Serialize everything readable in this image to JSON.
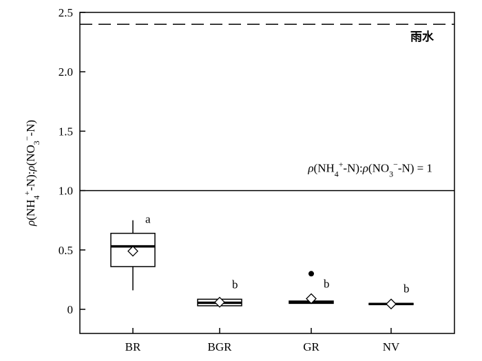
{
  "chart_data": {
    "type": "box",
    "title": "",
    "xlabel": "",
    "ylabel": {
      "parts": [
        {
          "t": "ρ",
          "style": "italic"
        },
        {
          "t": "(NH"
        },
        {
          "t": "4",
          "style": "sub"
        },
        {
          "t": "+",
          "style": "sup"
        },
        {
          "t": "-N):"
        },
        {
          "t": "ρ",
          "style": "italic"
        },
        {
          "t": "(NO"
        },
        {
          "t": "3",
          "style": "sub"
        },
        {
          "t": "−",
          "style": "sup"
        },
        {
          "t": "-N)"
        }
      ]
    },
    "ylim": [
      -0.2,
      2.5
    ],
    "yticks": [
      0,
      0.5,
      1.0,
      1.5,
      2.0,
      2.5
    ],
    "ytick_labels": [
      "0",
      "0.5",
      "1.0",
      "1.5",
      "2.0",
      "2.5"
    ],
    "categories": [
      "BR",
      "BGR",
      "GR",
      "NV"
    ],
    "boxes": [
      {
        "category": "BR",
        "whisker_low": 0.16,
        "q1": 0.36,
        "median": 0.53,
        "q3": 0.64,
        "whisker_high": 0.75,
        "mean": 0.49,
        "outliers": [],
        "letter": "a"
      },
      {
        "category": "BGR",
        "whisker_low": 0.03,
        "q1": 0.03,
        "median": 0.055,
        "q3": 0.085,
        "whisker_high": 0.085,
        "mean": 0.06,
        "outliers": [],
        "letter": "b"
      },
      {
        "category": "GR",
        "whisker_low": 0.05,
        "q1": 0.05,
        "median": 0.06,
        "q3": 0.07,
        "whisker_high": 0.07,
        "mean": 0.09,
        "outliers": [
          0.3
        ],
        "letter": "b"
      },
      {
        "category": "NV",
        "whisker_low": 0.04,
        "q1": 0.04,
        "median": 0.045,
        "q3": 0.05,
        "whisker_high": 0.05,
        "mean": 0.045,
        "outliers": [],
        "letter": "b"
      }
    ],
    "reference_lines": [
      {
        "value": 2.4,
        "style": "dashed",
        "label": "雨水"
      },
      {
        "value": 1.0,
        "style": "solid",
        "label_parts": [
          {
            "t": "ρ",
            "style": "italic"
          },
          {
            "t": "(NH"
          },
          {
            "t": "4",
            "style": "sub"
          },
          {
            "t": "+",
            "style": "sup"
          },
          {
            "t": "-N):"
          },
          {
            "t": "ρ",
            "style": "italic"
          },
          {
            "t": "(NO"
          },
          {
            "t": "3",
            "style": "sub"
          },
          {
            "t": "−",
            "style": "sup"
          },
          {
            "t": "-N) = 1"
          }
        ]
      }
    ],
    "colors": {
      "line": "#000000",
      "background": "#ffffff"
    }
  }
}
